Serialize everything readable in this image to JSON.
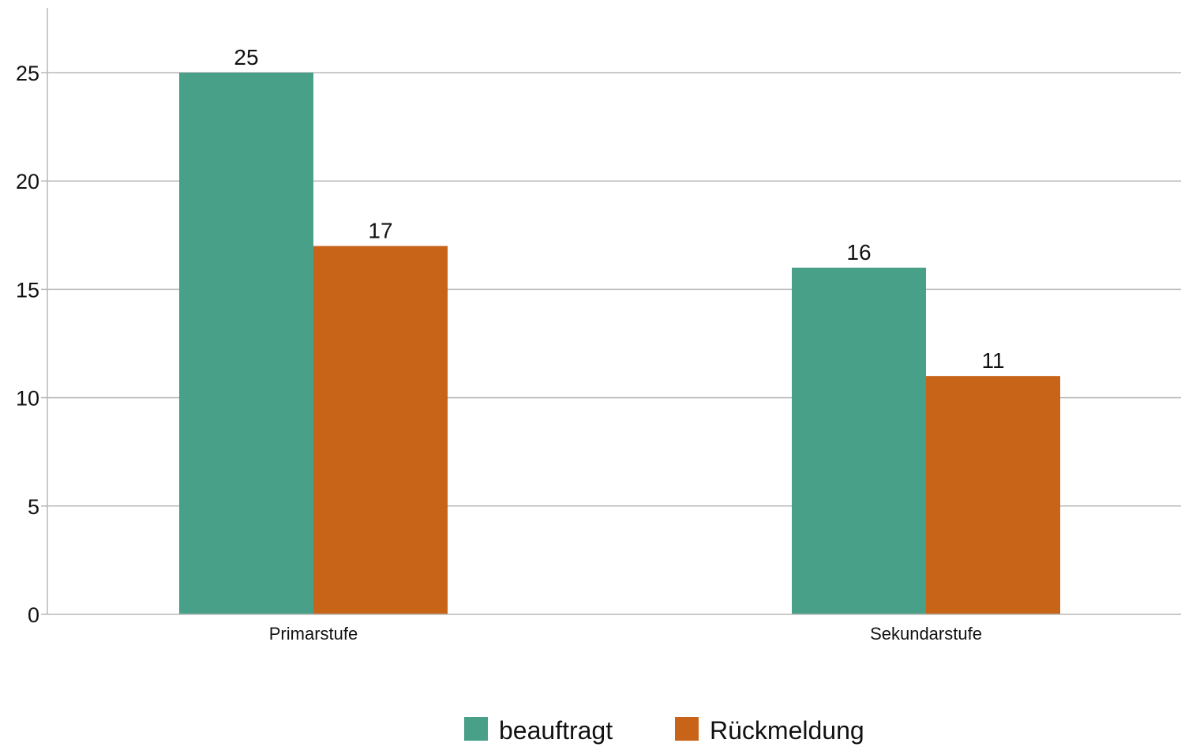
{
  "chart_data": {
    "type": "bar",
    "categories": [
      "Primarstufe",
      "Sekundarstufe"
    ],
    "series": [
      {
        "name": "beauftragt",
        "values": [
          25,
          16
        ],
        "color": "#48a088"
      },
      {
        "name": "Rückmeldung",
        "values": [
          17,
          11
        ],
        "color": "#c86418"
      }
    ],
    "yticks": [
      0,
      5,
      10,
      15,
      20,
      25
    ],
    "ylim": [
      0,
      28
    ],
    "grid": true,
    "legend_position": "bottom",
    "data_labels": true,
    "title": "",
    "xlabel": "",
    "ylabel": ""
  }
}
